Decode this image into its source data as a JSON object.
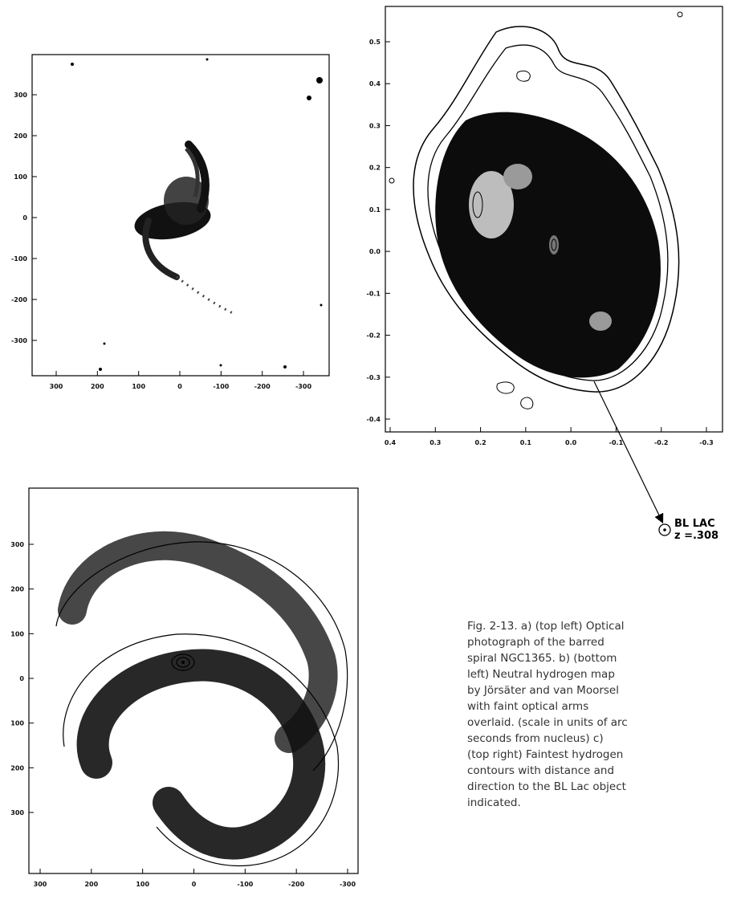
{
  "panels": {
    "a": {
      "y_ticks": [
        "300",
        "200",
        "100",
        "0",
        "-100",
        "-200",
        "-300"
      ],
      "x_ticks": [
        "300",
        "200",
        "100",
        "0",
        "-100",
        "-200",
        "-300"
      ]
    },
    "b": {
      "y_ticks": [
        "300",
        "200",
        "100",
        "0",
        "100",
        "200",
        "300"
      ],
      "x_ticks": [
        "300",
        "200",
        "100",
        "0",
        "-100",
        "-200",
        "-300"
      ]
    },
    "c": {
      "y_ticks": [
        "0.5",
        "0.4",
        "0.3",
        "0.2",
        "0.1",
        "0.0",
        "-0.1",
        "-0.2",
        "-0.3",
        "-0.4"
      ],
      "x_ticks": [
        "0.4",
        "0.3",
        "0.2",
        "0.1",
        "0.0",
        "-0.1",
        "-0.2",
        "-0.3"
      ]
    }
  },
  "bl_lac": {
    "line1": "BL LAC",
    "line2": "z =.308"
  },
  "caption": "Fig. 2-13. a) (top left) Optical photograph of the barred spiral NGC1365. b) (bottom left) Neutral hydrogen map by Jörsäter and van Moorsel with faint optical arms overlaid. (scale in units of arc seconds from nucleus) c) (top right) Faintest hydrogen contours with distance and direction to the BL Lac object indicated."
}
